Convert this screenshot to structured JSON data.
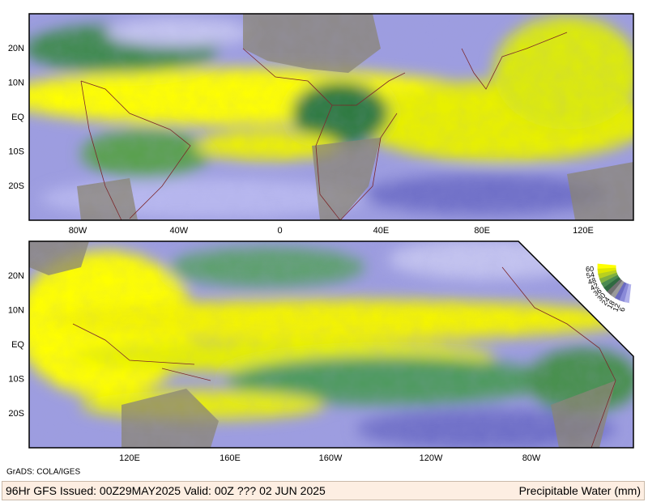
{
  "top_panel": {
    "lat_labels": [
      "20N",
      "10N",
      "EQ",
      "10S",
      "20S"
    ],
    "lon_labels": [
      "80W",
      "40W",
      "0",
      "40E",
      "80E",
      "120E"
    ]
  },
  "bottom_panel": {
    "lat_labels": [
      "20N",
      "10N",
      "EQ",
      "10S",
      "20S"
    ],
    "lon_labels": [
      "120E",
      "160E",
      "160W",
      "120W",
      "80W"
    ]
  },
  "colorbar": {
    "labels": [
      "60",
      "54",
      "48",
      "42",
      "36",
      "30",
      "24",
      "18",
      "12",
      "6"
    ]
  },
  "credit": "GrADS: COLA/IGES",
  "footer": {
    "left": "96Hr GFS Issued: 00Z29MAY2025 Valid: 00Z ??? 02 JUN 2025",
    "right": "Precipitable Water (mm)"
  }
}
